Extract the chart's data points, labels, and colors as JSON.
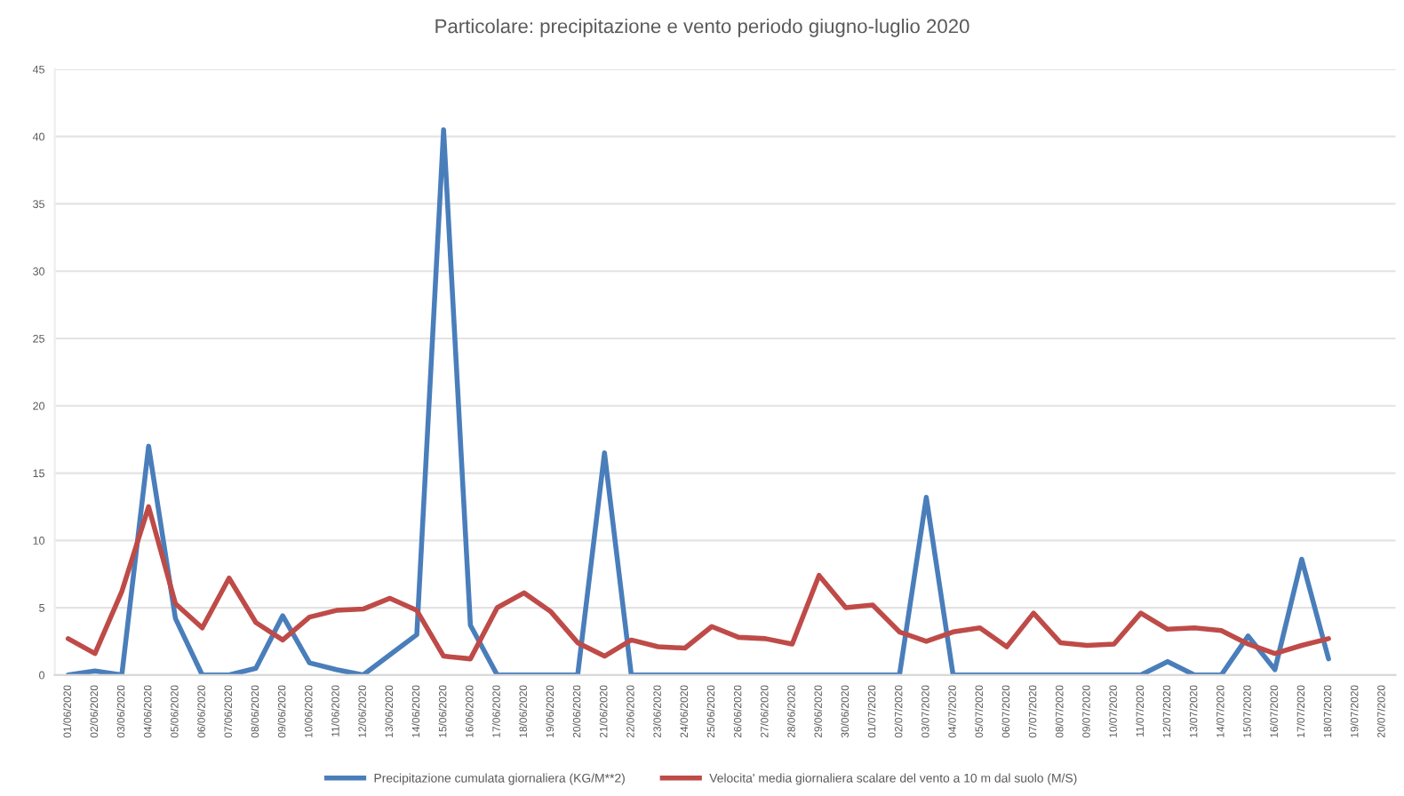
{
  "chart_data": {
    "type": "line",
    "title": "Particolare: precipitazione e vento periodo giugno-luglio 2020",
    "categories": [
      "01/06/2020",
      "02/06/2020",
      "03/06/2020",
      "04/06/2020",
      "05/06/2020",
      "06/06/2020",
      "07/06/2020",
      "08/06/2020",
      "09/06/2020",
      "10/06/2020",
      "11/06/2020",
      "12/06/2020",
      "13/06/2020",
      "14/06/2020",
      "15/06/2020",
      "16/06/2020",
      "17/06/2020",
      "18/06/2020",
      "19/06/2020",
      "20/06/2020",
      "21/06/2020",
      "22/06/2020",
      "23/06/2020",
      "24/06/2020",
      "25/06/2020",
      "26/06/2020",
      "27/06/2020",
      "28/06/2020",
      "29/06/2020",
      "30/06/2020",
      "01/07/2020",
      "02/07/2020",
      "03/07/2020",
      "04/07/2020",
      "05/07/2020",
      "06/07/2020",
      "07/07/2020",
      "08/07/2020",
      "09/07/2020",
      "10/07/2020",
      "11/07/2020",
      "12/07/2020",
      "13/07/2020",
      "14/07/2020",
      "15/07/2020",
      "16/07/2020",
      "17/07/2020",
      "18/07/2020",
      "19/07/2020",
      "20/07/2020"
    ],
    "series": [
      {
        "name": "Precipitazione cumulata giornaliera (KG/M**2)",
        "color": "#4a7ebb",
        "values": [
          0,
          0.3,
          0,
          17,
          4.2,
          0,
          0,
          0.5,
          4.4,
          0.9,
          0.4,
          0,
          1.5,
          3,
          40.5,
          3.7,
          0,
          0,
          0,
          0,
          16.5,
          0,
          0,
          0,
          0,
          0,
          0,
          0,
          0,
          0,
          0,
          0,
          13.2,
          0,
          0,
          0,
          0,
          0,
          0,
          0,
          0,
          1,
          0,
          0,
          2.9,
          0.4,
          8.6,
          1.2,
          null,
          null
        ]
      },
      {
        "name": "Velocita' media giornaliera scalare del vento a 10 m dal suolo (M/S)",
        "color": "#be4b48",
        "values": [
          2.7,
          1.6,
          6.2,
          12.5,
          5.3,
          3.5,
          7.2,
          3.9,
          2.6,
          4.3,
          4.8,
          4.9,
          5.7,
          4.8,
          1.4,
          1.2,
          5,
          6.1,
          4.7,
          2.4,
          1.4,
          2.6,
          2.1,
          2,
          3.6,
          2.8,
          2.7,
          2.3,
          7.4,
          5,
          5.2,
          3.2,
          2.5,
          3.2,
          3.5,
          2.1,
          4.6,
          2.4,
          2.2,
          2.3,
          4.6,
          3.4,
          3.5,
          3.3,
          2.3,
          1.6,
          2.2,
          2.7,
          null,
          null
        ]
      }
    ],
    "ylim": [
      0,
      45
    ],
    "yticks": [
      0,
      5,
      10,
      15,
      20,
      25,
      30,
      35,
      40,
      45
    ],
    "grid": "y",
    "legend": "bottom",
    "marker": "none",
    "line_style": "solid"
  }
}
